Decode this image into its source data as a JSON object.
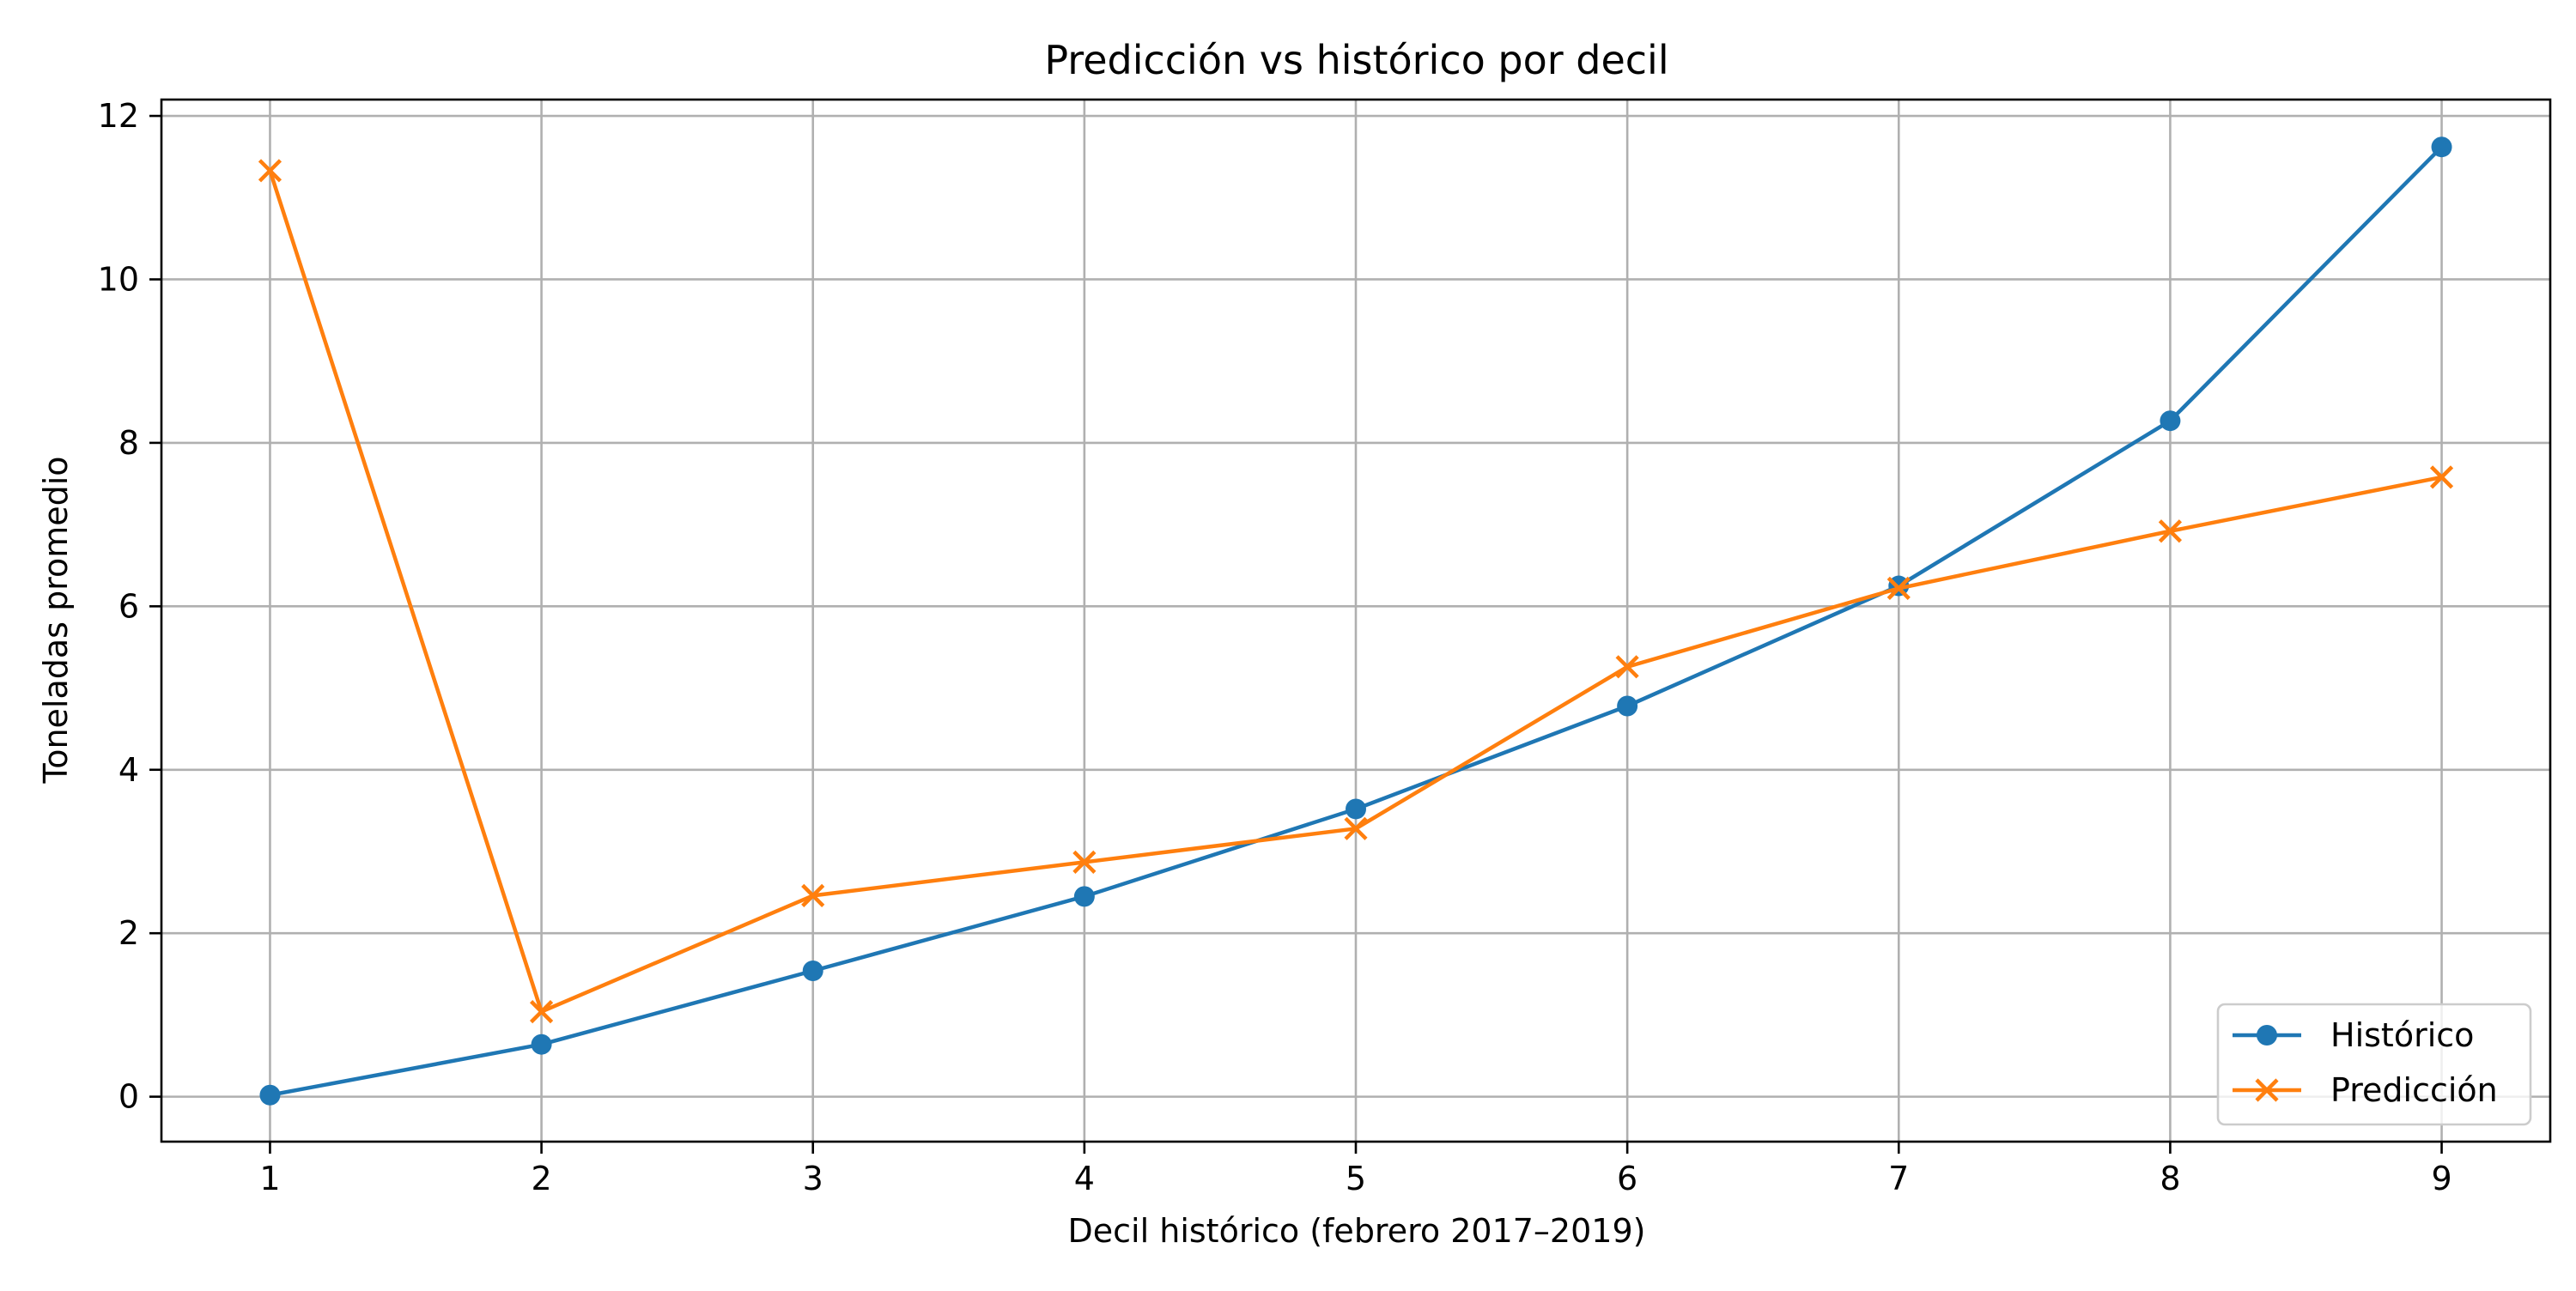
{
  "chart_data": {
    "type": "line",
    "title": "Predicción vs histórico por decil",
    "xlabel": "Decil histórico (febrero 2017–2019)",
    "ylabel": "Toneladas promedio",
    "x": [
      1,
      2,
      3,
      4,
      5,
      6,
      7,
      8,
      9
    ],
    "x_ticks": [
      "1",
      "2",
      "3",
      "4",
      "5",
      "6",
      "7",
      "8",
      "9"
    ],
    "y_ticks": [
      "0",
      "2",
      "4",
      "6",
      "8",
      "10",
      "12"
    ],
    "xlim": [
      0.6,
      9.4
    ],
    "ylim": [
      -0.55,
      12.2
    ],
    "grid": true,
    "legend": "lower-right",
    "series": [
      {
        "name": "Histórico",
        "color": "#1f77b4",
        "marker": "circle",
        "values": [
          0.02,
          0.64,
          1.54,
          2.45,
          3.52,
          4.78,
          6.25,
          8.27,
          11.62
        ]
      },
      {
        "name": "Predicción",
        "color": "#ff7f0e",
        "marker": "x",
        "values": [
          11.33,
          1.04,
          2.46,
          2.87,
          3.28,
          5.26,
          6.22,
          6.92,
          7.58
        ]
      }
    ]
  }
}
